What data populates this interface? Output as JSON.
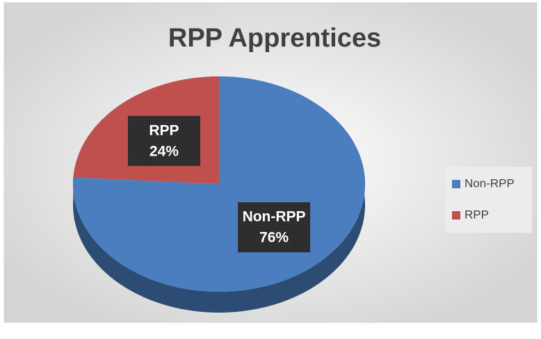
{
  "chart_data": {
    "type": "pie",
    "title": "RPP Apprentices",
    "categories": [
      "Non-RPP",
      "RPP"
    ],
    "values": [
      76,
      24
    ],
    "value_labels": [
      "76%",
      "24%"
    ],
    "colors": [
      "#4a7ebf",
      "#c0504d"
    ],
    "legend": "right"
  }
}
